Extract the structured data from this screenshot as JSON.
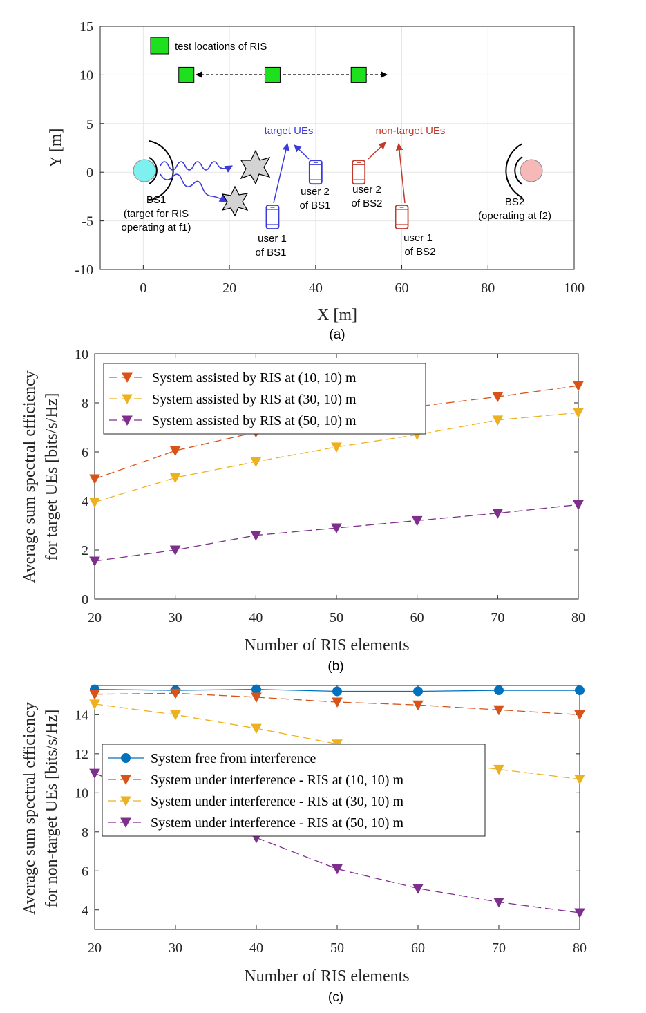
{
  "colors": {
    "orange": "#D95319",
    "yellow": "#EDB120",
    "purple": "#7E2F8E",
    "blue": "#0072BD",
    "target_blue": "#3b3bd9",
    "nontarget_red": "#c0392b",
    "ris_green": "#1ee01e",
    "bs1_fill": "#7ff0f0",
    "bs2_fill": "#f7b8b8"
  },
  "chart_data": [
    {
      "type": "scatter",
      "panel_label": "(a)",
      "xlabel": "X [m]",
      "ylabel": "Y [m]",
      "xlim": [
        -10,
        100
      ],
      "ylim": [
        -10,
        15
      ],
      "xticks": [
        "0",
        "20",
        "40",
        "60",
        "80",
        "100"
      ],
      "yticks": [
        "-10",
        "-5",
        "0",
        "5",
        "10",
        "15"
      ],
      "legend": "test locations of RIS",
      "ris_locations": [
        [
          10,
          10
        ],
        [
          30,
          10
        ],
        [
          50,
          10
        ]
      ],
      "bs1": {
        "x": 0,
        "y": 0,
        "label_lines": [
          "BS1",
          "(target for RIS",
          "operating at f1)"
        ]
      },
      "bs2": {
        "x": 90,
        "y": 0,
        "label_lines": [
          "BS2",
          "(operating at f2)"
        ]
      },
      "users": [
        {
          "name": "user1_bs1",
          "x": 30,
          "y": -4.6,
          "group": "target",
          "label_lines": [
            "user 1",
            "of BS1"
          ]
        },
        {
          "name": "user2_bs1",
          "x": 40,
          "y": 0,
          "group": "target",
          "label_lines": [
            "user 2",
            "of BS1"
          ]
        },
        {
          "name": "user2_bs2",
          "x": 50,
          "y": 0,
          "group": "nontarget",
          "label_lines": [
            "user 2",
            "of BS2"
          ]
        },
        {
          "name": "user1_bs2",
          "x": 60,
          "y": -4.6,
          "group": "nontarget",
          "label_lines": [
            "user 1",
            "of BS2"
          ]
        }
      ],
      "group_labels": {
        "target": "target UEs",
        "nontarget": "non-target UEs"
      }
    },
    {
      "type": "line",
      "panel_label": "(b)",
      "xlabel": "Number of RIS elements",
      "ylabel_lines": [
        "Average sum spectral efficiency",
        "for target UEs [bits/s/Hz]"
      ],
      "x": [
        20,
        30,
        40,
        50,
        60,
        70,
        80
      ],
      "xlim": [
        20,
        80
      ],
      "ylim": [
        0,
        10
      ],
      "xticks": [
        "20",
        "30",
        "40",
        "50",
        "60",
        "70",
        "80"
      ],
      "yticks": [
        "0",
        "2",
        "4",
        "6",
        "8",
        "10"
      ],
      "legend_position": "top-left",
      "series": [
        {
          "name": "System assisted by RIS at (10, 10) m",
          "values": [
            4.9,
            6.05,
            6.8,
            7.4,
            7.85,
            8.25,
            8.7
          ]
        },
        {
          "name": "System assisted by RIS at (30, 10) m",
          "values": [
            3.95,
            4.95,
            5.6,
            6.2,
            6.7,
            7.3,
            7.6
          ]
        },
        {
          "name": "System assisted by RIS at (50, 10) m",
          "values": [
            1.55,
            2.0,
            2.6,
            2.9,
            3.2,
            3.5,
            3.85
          ]
        }
      ]
    },
    {
      "type": "line",
      "panel_label": "(c)",
      "xlabel": "Number of RIS elements",
      "ylabel_lines": [
        "Average sum spectral efficiency",
        "for non-target UEs [bits/s/Hz]"
      ],
      "x": [
        20,
        30,
        40,
        50,
        60,
        70,
        80
      ],
      "xlim": [
        20,
        80
      ],
      "ylim": [
        3,
        15.5
      ],
      "xticks": [
        "20",
        "30",
        "40",
        "50",
        "60",
        "70",
        "80"
      ],
      "yticks": [
        "4",
        "6",
        "8",
        "10",
        "12",
        "14"
      ],
      "legend_position": "middle-left",
      "series": [
        {
          "name": "System free from interference",
          "values": [
            15.3,
            15.25,
            15.3,
            15.2,
            15.2,
            15.25,
            15.25
          ]
        },
        {
          "name": "System under interference - RIS at (10, 10) m",
          "values": [
            15.05,
            15.1,
            14.9,
            14.65,
            14.5,
            14.25,
            14.0
          ]
        },
        {
          "name": "System under interference - RIS at (30, 10) m",
          "values": [
            14.55,
            14.0,
            13.3,
            12.5,
            11.7,
            11.2,
            10.7
          ]
        },
        {
          "name": "System under interference - RIS at (50, 10) m",
          "values": [
            11.0,
            9.3,
            7.7,
            6.1,
            5.1,
            4.4,
            3.85
          ]
        }
      ]
    }
  ]
}
